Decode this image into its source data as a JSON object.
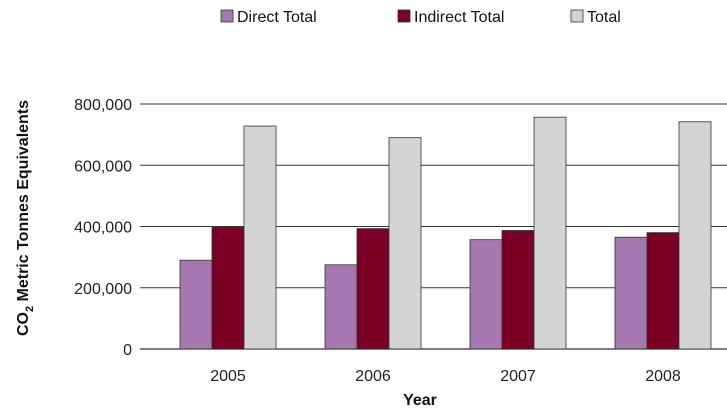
{
  "chart_data": {
    "type": "bar",
    "categories": [
      "2005",
      "2006",
      "2007",
      "2008"
    ],
    "series": [
      {
        "name": "Direct Total",
        "color": "#a578b0",
        "values": [
          290000,
          275000,
          357000,
          365000
        ]
      },
      {
        "name": "Indirect Total",
        "color": "#7a0025",
        "values": [
          397000,
          393000,
          387000,
          380000
        ]
      },
      {
        "name": "Total",
        "color": "#d4d4d6",
        "values": [
          728000,
          690000,
          757000,
          742000
        ]
      }
    ],
    "y_ticks": [
      "0",
      "200,000",
      "400,000",
      "600,000",
      "800,000"
    ],
    "y_tick_values": [
      0,
      200000,
      400000,
      600000,
      800000
    ],
    "ylim": [
      0,
      800000
    ],
    "xlabel": "Year",
    "ylabel_main": "CO",
    "ylabel_sub": "2",
    "ylabel_rest": " Metric Tonnes Equivalents",
    "grid": "horizontal",
    "legend_position": "top"
  }
}
